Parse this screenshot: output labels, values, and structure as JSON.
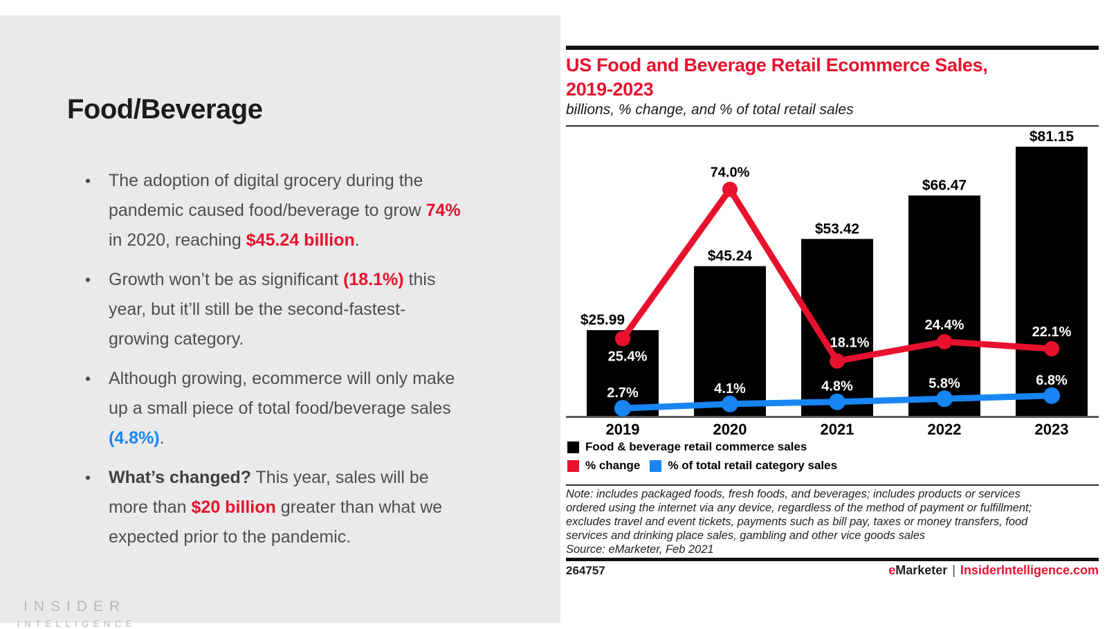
{
  "left_panel": {
    "heading": "Food/Beverage",
    "bullets": [
      {
        "segments": [
          {
            "t": "The adoption of digital grocery during the\npandemic caused food/beverage to grow "
          },
          {
            "t": "74%",
            "s": "red"
          },
          {
            "t": "\nin 2020, reaching "
          },
          {
            "t": "$45.24 billion",
            "s": "red"
          },
          {
            "t": "."
          }
        ]
      },
      {
        "segments": [
          {
            "t": "Growth won’t be as significant "
          },
          {
            "t": "(18.1%)",
            "s": "red"
          },
          {
            "t": " this\nyear, but it’ll still be the second-fastest-\ngrowing category."
          }
        ]
      },
      {
        "segments": [
          {
            "t": "Although growing, ecommerce will only make\nup a small piece of total food/beverage sales\n"
          },
          {
            "t": "(4.8%)",
            "s": "blue"
          },
          {
            "t": "."
          }
        ]
      },
      {
        "segments": [
          {
            "t": "What’s changed?",
            "s": "bold"
          },
          {
            "t": " This year, sales will be\nmore than "
          },
          {
            "t": "$20 billion",
            "s": "red"
          },
          {
            "t": " greater than what we\nexpected prior to the pandemic."
          }
        ]
      }
    ],
    "watermark": {
      "line1": "INSIDER",
      "line2": "INTELLIGENCE"
    }
  },
  "chart_panel": {
    "title": "US Food and Beverage Retail Ecommerce Sales,\n2019-2023",
    "subtitle": "billions, % change, and % of total retail sales",
    "note": "Note: includes packaged foods, fresh foods, and beverages; includes products or services\nordered using the internet via any device, regardless of the method of payment or fulfillment;\nexcludes travel and event tickets, payments such as bill pay, taxes or money transfers, food\nservices and drinking place sales, gambling and other vice goods sales",
    "source": "Source: eMarketer, Feb 2021",
    "footer": {
      "chart_id": "264757",
      "brand_e": "e",
      "brand_rest": "Marketer",
      "separator": "|",
      "site": "InsiderIntelligence.com"
    }
  },
  "chart_data": {
    "type": "bar",
    "title": "US Food and Beverage Retail Ecommerce Sales, 2019-2023",
    "subtitle": "billions, % change, and % of total retail sales",
    "categories": [
      "2019",
      "2020",
      "2021",
      "2022",
      "2023"
    ],
    "series": [
      {
        "name": "Food & beverage retail commerce sales",
        "type": "bar",
        "unit": "$ billions",
        "color": "#000000",
        "values": [
          25.99,
          45.24,
          53.42,
          66.47,
          81.15
        ],
        "labels": [
          "$25.99",
          "$45.24",
          "$53.42",
          "$66.47",
          "$81.15"
        ],
        "label_color": "#000000"
      },
      {
        "name": "% change",
        "type": "line",
        "unit": "%",
        "color": "#E8112D",
        "values": [
          25.4,
          74.0,
          18.1,
          24.4,
          22.1
        ],
        "labels": [
          "25.4%",
          "74.0%",
          "18.1%",
          "24.4%",
          "22.1%"
        ],
        "label_colors": [
          "#ffffff",
          "#000000",
          "#ffffff",
          "#ffffff",
          "#ffffff"
        ]
      },
      {
        "name": "% of total retail category sales",
        "type": "line",
        "unit": "%",
        "color": "#1786F3",
        "values": [
          2.7,
          4.1,
          4.8,
          5.8,
          6.8
        ],
        "labels": [
          "2.7%",
          "4.1%",
          "4.8%",
          "5.8%",
          "6.8%"
        ],
        "label_colors": [
          "#ffffff",
          "#ffffff",
          "#ffffff",
          "#ffffff",
          "#ffffff"
        ]
      }
    ],
    "axes": {
      "x": "years",
      "value_axis_visible": false,
      "bar_ylim": [
        0,
        85
      ],
      "pct_ylim": [
        0,
        95
      ]
    },
    "grid": false,
    "legend_position": "bottom-left",
    "annotations": "all values labeled directly on chart"
  }
}
